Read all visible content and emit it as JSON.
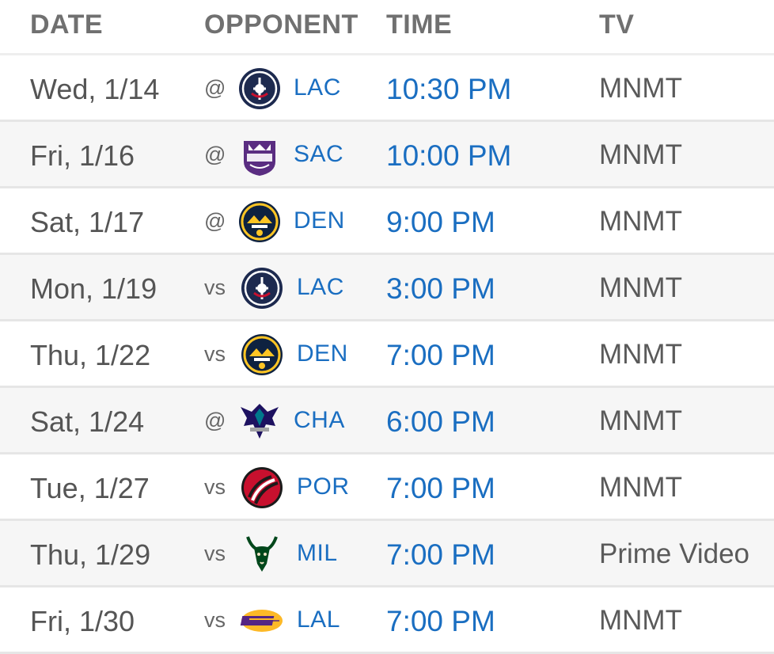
{
  "header": {
    "date": "DATE",
    "opponent": "OPPONENT",
    "time": "TIME",
    "tv": "TV"
  },
  "games": [
    {
      "date": "Wed, 1/14",
      "prefix": "@",
      "team": "LAC",
      "logo": "clippers-logo-icon",
      "time": "10:30 PM",
      "tv": "MNMT"
    },
    {
      "date": "Fri, 1/16",
      "prefix": "@",
      "team": "SAC",
      "logo": "kings-logo-icon",
      "time": "10:00 PM",
      "tv": "MNMT"
    },
    {
      "date": "Sat, 1/17",
      "prefix": "@",
      "team": "DEN",
      "logo": "nuggets-logo-icon",
      "time": "9:00 PM",
      "tv": "MNMT"
    },
    {
      "date": "Mon, 1/19",
      "prefix": "vs",
      "team": "LAC",
      "logo": "clippers-logo-icon",
      "time": "3:00 PM",
      "tv": "MNMT"
    },
    {
      "date": "Thu, 1/22",
      "prefix": "vs",
      "team": "DEN",
      "logo": "nuggets-logo-icon",
      "time": "7:00 PM",
      "tv": "MNMT"
    },
    {
      "date": "Sat, 1/24",
      "prefix": "@",
      "team": "CHA",
      "logo": "hornets-logo-icon",
      "time": "6:00 PM",
      "tv": "MNMT"
    },
    {
      "date": "Tue, 1/27",
      "prefix": "vs",
      "team": "POR",
      "logo": "trail-blazers-logo-icon",
      "time": "7:00 PM",
      "tv": "MNMT"
    },
    {
      "date": "Thu, 1/29",
      "prefix": "vs",
      "team": "MIL",
      "logo": "bucks-logo-icon",
      "time": "7:00 PM",
      "tv": "Prime Video"
    },
    {
      "date": "Fri, 1/30",
      "prefix": "vs",
      "team": "LAL",
      "logo": "lakers-logo-icon",
      "time": "7:00 PM",
      "tv": "MNMT"
    }
  ],
  "colors": {
    "link": "#1a6ec1",
    "header_text": "#707070",
    "body_text": "#555555",
    "row_alt": "#f6f6f6"
  }
}
